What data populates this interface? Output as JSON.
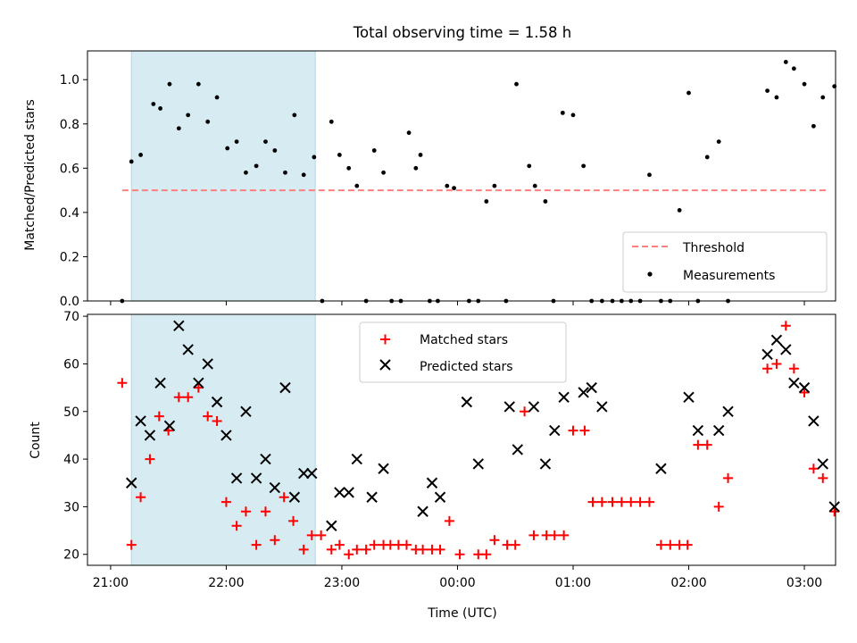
{
  "figure": {
    "title": "Total observing time = 1.58 h"
  },
  "chart_data": [
    {
      "type": "scatter",
      "ylabel": "Matched/Predicted stars",
      "ylim": [
        0,
        1.13
      ],
      "yticks": [
        "0.0",
        "0.2",
        "0.4",
        "0.6",
        "0.8",
        "1.0"
      ],
      "ytick_values": [
        0,
        0.2,
        0.4,
        0.6,
        0.8,
        1.0
      ],
      "xlim_hours": [
        -3.2,
        3.27
      ],
      "shaded_span_hours": [
        -2.82,
        -1.23
      ],
      "shade_color": "#add8e6",
      "grid": false,
      "legend": {
        "placement": "lower right",
        "entries": [
          "Threshold",
          "Measurements"
        ]
      },
      "threshold": {
        "name": "Threshold",
        "y": 0.5,
        "x_start": -2.9,
        "x_end": 3.2,
        "color": "#ff7f7f"
      },
      "series": [
        {
          "name": "Measurements",
          "color": "#000000",
          "x_hours": [
            -2.9,
            -2.82,
            -2.74,
            -2.63,
            -2.57,
            -2.49,
            -2.41,
            -2.33,
            -2.24,
            -2.16,
            -2.08,
            -1.99,
            -1.91,
            -1.83,
            -1.74,
            -1.66,
            -1.58,
            -1.49,
            -1.41,
            -1.33,
            -1.24,
            -1.17,
            -1.09,
            -1.02,
            -0.94,
            -0.87,
            -0.79,
            -0.72,
            -0.64,
            -0.57,
            -0.49,
            -0.42,
            -0.36,
            -0.32,
            -0.24,
            -0.17,
            -0.09,
            -0.03,
            0.1,
            0.18,
            0.25,
            0.32,
            0.42,
            0.51,
            0.62,
            0.67,
            0.76,
            0.83,
            0.91,
            1.0,
            1.09,
            1.16,
            1.25,
            1.34,
            1.42,
            1.5,
            1.58,
            1.66,
            1.76,
            1.84,
            1.92,
            2.0,
            2.08,
            2.16,
            2.26,
            2.34,
            2.68,
            2.76,
            2.84,
            2.91,
            3.0,
            3.08,
            3.16,
            3.26
          ],
          "y": [
            0.0,
            0.63,
            0.66,
            0.89,
            0.87,
            0.98,
            0.78,
            0.84,
            0.98,
            0.81,
            0.92,
            0.69,
            0.72,
            0.58,
            0.61,
            0.72,
            0.68,
            0.58,
            0.84,
            0.57,
            0.65,
            0.0,
            0.81,
            0.66,
            0.6,
            0.52,
            0.0,
            0.68,
            0.58,
            0.0,
            0.0,
            0.76,
            0.6,
            0.66,
            0.0,
            0.0,
            0.52,
            0.51,
            0.0,
            0.0,
            0.45,
            0.52,
            0.0,
            0.98,
            0.61,
            0.52,
            0.45,
            0.0,
            0.85,
            0.84,
            0.61,
            0.0,
            0.0,
            0.0,
            0.0,
            0.0,
            0.0,
            0.57,
            0.0,
            0.0,
            0.41,
            0.94,
            0.0,
            0.65,
            0.72,
            0.0,
            0.95,
            0.92,
            1.08,
            1.05,
            0.98,
            0.79,
            0.92,
            0.97
          ]
        }
      ]
    },
    {
      "type": "scatter",
      "xlabel": "Time (UTC)",
      "ylabel": "Count",
      "ylim": [
        17.7,
        70.4
      ],
      "yticks": [
        "20",
        "30",
        "40",
        "50",
        "60",
        "70"
      ],
      "ytick_values": [
        20,
        30,
        40,
        50,
        60,
        70
      ],
      "xlim_hours": [
        -3.2,
        3.27
      ],
      "xticks": [
        "21:00",
        "22:00",
        "23:00",
        "00:00",
        "01:00",
        "02:00",
        "03:00"
      ],
      "xtick_hours": [
        -3,
        -2,
        -1,
        0,
        1,
        2,
        3
      ],
      "shaded_span_hours": [
        -2.82,
        -1.23
      ],
      "shade_color": "#add8e6",
      "grid": false,
      "legend": {
        "placement": "upper center",
        "entries": [
          "Matched stars",
          "Predicted stars"
        ]
      },
      "series": [
        {
          "name": "Matched stars",
          "marker": "plus",
          "color": "#ff0000",
          "x_hours": [
            -2.9,
            -2.82,
            -2.74,
            -2.66,
            -2.58,
            -2.5,
            -2.41,
            -2.33,
            -2.24,
            -2.16,
            -2.08,
            -2.0,
            -1.91,
            -1.83,
            -1.74,
            -1.66,
            -1.58,
            -1.5,
            -1.42,
            -1.33,
            -1.26,
            -1.18,
            -1.09,
            -1.02,
            -0.94,
            -0.87,
            -0.79,
            -0.72,
            -0.64,
            -0.58,
            -0.51,
            -0.44,
            -0.36,
            -0.3,
            -0.22,
            -0.15,
            -0.07,
            0.02,
            0.18,
            0.25,
            0.32,
            0.43,
            0.5,
            0.58,
            0.66,
            0.77,
            0.84,
            0.92,
            1.0,
            1.1,
            1.17,
            1.25,
            1.34,
            1.42,
            1.5,
            1.58,
            1.66,
            1.76,
            1.84,
            1.92,
            1.99,
            2.08,
            2.16,
            2.26,
            2.34,
            2.68,
            2.76,
            2.84,
            2.91,
            3.0,
            3.08,
            3.16,
            3.26
          ],
          "y": [
            56,
            22,
            32,
            40,
            49,
            46,
            53,
            53,
            55,
            49,
            48,
            31,
            26,
            29,
            22,
            29,
            23,
            32,
            27,
            21,
            24,
            24,
            21,
            22,
            20,
            21,
            21,
            22,
            22,
            22,
            22,
            22,
            21,
            21,
            21,
            21,
            27,
            20,
            20,
            20,
            23,
            22,
            22,
            50,
            24,
            24,
            24,
            24,
            46,
            46,
            31,
            31,
            31,
            31,
            31,
            31,
            31,
            22,
            22,
            22,
            22,
            43,
            43,
            30,
            36,
            59,
            60,
            68,
            59,
            54,
            38,
            36,
            29
          ]
        },
        {
          "name": "Predicted stars",
          "marker": "x",
          "color": "#000000",
          "x_hours": [
            -2.82,
            -2.74,
            -2.66,
            -2.57,
            -2.49,
            -2.41,
            -2.33,
            -2.24,
            -2.16,
            -2.08,
            -2.0,
            -1.91,
            -1.83,
            -1.74,
            -1.66,
            -1.58,
            -1.49,
            -1.41,
            -1.33,
            -1.26,
            -1.09,
            -1.02,
            -0.94,
            -0.87,
            -0.74,
            -0.64,
            -0.3,
            -0.22,
            -0.15,
            0.08,
            0.18,
            0.45,
            0.52,
            0.66,
            0.76,
            0.84,
            0.92,
            1.09,
            1.16,
            1.25,
            1.76,
            2.0,
            2.08,
            2.26,
            2.34,
            2.68,
            2.76,
            2.84,
            2.91,
            3.0,
            3.08,
            3.16,
            3.26
          ],
          "y": [
            35,
            48,
            45,
            56,
            47,
            68,
            63,
            56,
            60,
            52,
            45,
            36,
            50,
            36,
            40,
            34,
            55,
            32,
            37,
            37,
            26,
            33,
            33,
            40,
            32,
            38,
            29,
            35,
            32,
            52,
            39,
            51,
            42,
            51,
            39,
            46,
            53,
            54,
            55,
            51,
            38,
            53,
            46,
            46,
            50,
            62,
            65,
            63,
            56,
            55,
            48,
            39,
            30
          ]
        }
      ]
    }
  ]
}
